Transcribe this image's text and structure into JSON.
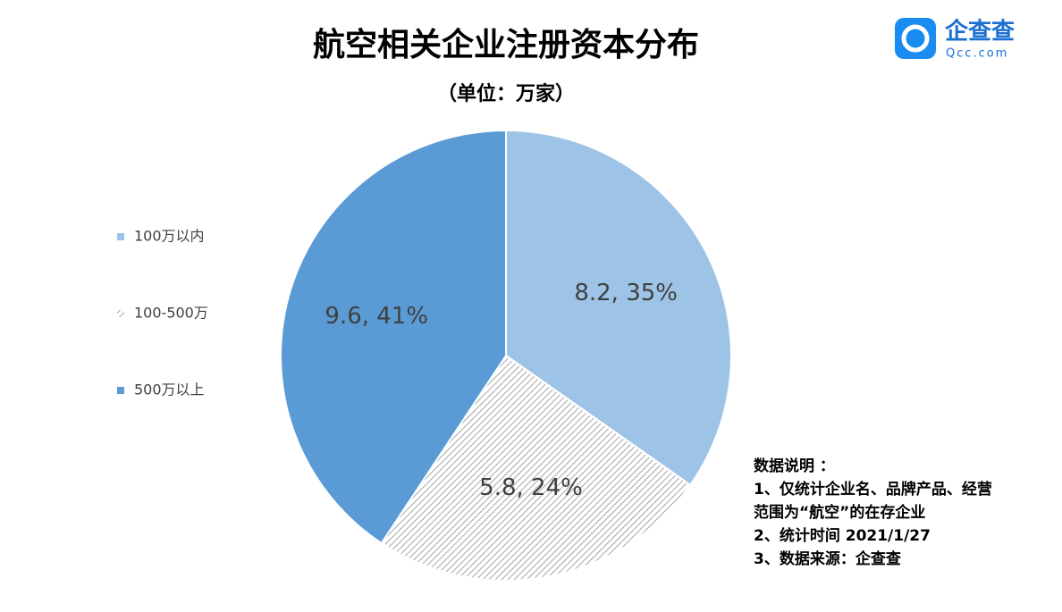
{
  "chart_data": {
    "type": "pie",
    "title": "航空相关企业注册资本分布",
    "subtitle": "（单位：万家）",
    "categories": [
      "100万以内",
      "100-500万",
      "500万以上"
    ],
    "values": [
      8.2,
      5.8,
      9.6
    ],
    "value_labels": [
      "8.2, 35%",
      "5.8, 24%",
      "9.6, 41%"
    ],
    "colors": [
      "#9dc3e6",
      "#a6a6a6",
      "#5b9bd5"
    ],
    "patterns": [
      "solid",
      "hatch",
      "solid"
    ],
    "legend": "left"
  },
  "notes": [
    "数据说明 ：",
    "1、仅统计企业名、品牌产品、经营",
    "范围为“航空”的在存企业",
    "2、统计时间 2021/1/27",
    "3、数据来源：企查查"
  ],
  "logo": {
    "name": "企查查",
    "site": "Qcc.com"
  }
}
